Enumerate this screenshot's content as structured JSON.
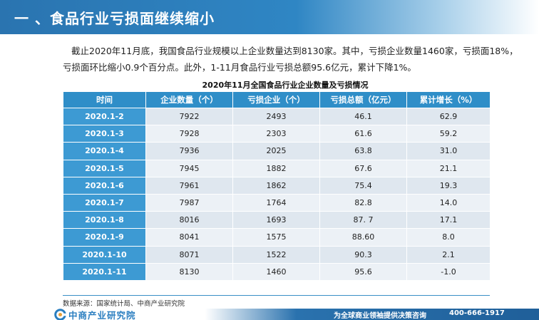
{
  "header": {
    "title": "一 、食品行业亏损面继续缩小"
  },
  "intro": {
    "text": "截止2020年11月底，我国食品行业规模以上企业数量达到8130家。其中，亏损企业数量1460家，亏损面18%，亏损面环比缩小0.9个百分点。此外，1-11月食品行业亏损总额95.6亿元，累计下降1%。"
  },
  "table": {
    "caption": "2020年11月全国食品行业企业数量及亏损情况",
    "headers": [
      "时间",
      "企业数量（个）",
      "亏损企业（个）",
      "亏损总额（亿元）",
      "累计增长（%）"
    ],
    "rows": [
      [
        "2020.1-2",
        "7922",
        "2493",
        "46.1",
        "62.9"
      ],
      [
        "2020.1-3",
        "7928",
        "2303",
        "61.6",
        "59.2"
      ],
      [
        "2020.1-4",
        "7936",
        "2025",
        "63.8",
        "31.0"
      ],
      [
        "2020.1-5",
        "7945",
        "1882",
        "67.6",
        "21.1"
      ],
      [
        "2020.1-6",
        "7961",
        "1862",
        "75.4",
        "19.3"
      ],
      [
        "2020.1-7",
        "7987",
        "1764",
        "82.8",
        "14.0"
      ],
      [
        "2020.1-8",
        "8016",
        "1693",
        "87. 7",
        "17.1"
      ],
      [
        "2020.1-9",
        "8041",
        "1575",
        "88.60",
        "8.0"
      ],
      [
        "2020.1-10",
        "8071",
        "1522",
        "90.3",
        "2.1"
      ],
      [
        "2020.1-11",
        "8130",
        "1460",
        "95.6",
        "-1.0"
      ]
    ]
  },
  "footer": {
    "source": "数据来源：国家统计局、中商产业研究院",
    "logo_text": "中商产业研究院",
    "slogan": "为全球商业领袖提供决策咨询",
    "phone": "400-666-1917"
  },
  "colors": {
    "header_blue": "#2a74b0",
    "table_head": "#2f8ec8",
    "row_light": "#dfe7ef",
    "row_lighter": "#ecf1f6"
  }
}
